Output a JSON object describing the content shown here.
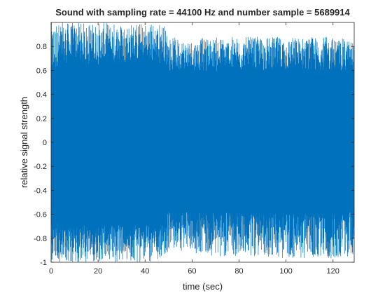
{
  "chart_data": {
    "type": "line",
    "title": "Sound with sampling rate = 44100 Hz and number sample = 5689914",
    "xlabel": "time (sec)",
    "ylabel": "relative signal strength",
    "xlim": [
      0,
      129.02
    ],
    "ylim": [
      -1,
      1
    ],
    "xticks": [
      0,
      20,
      40,
      60,
      80,
      100,
      120
    ],
    "xtick_labels": [
      "0",
      "20",
      "40",
      "60",
      "80",
      "100",
      "120"
    ],
    "yticks": [
      -1,
      -0.8,
      -0.6,
      -0.4,
      -0.2,
      0,
      0.2,
      0.4,
      0.6,
      0.8
    ],
    "ytick_labels": [
      "-1",
      "-0.8",
      "-0.6",
      "-0.4",
      "-0.2",
      "0",
      "0.2",
      "0.4",
      "0.6",
      "0.8"
    ],
    "grid": false,
    "series": [
      {
        "color": "#0072BD",
        "envelope": {
          "x": [
            0,
            2,
            5,
            10,
            20,
            30,
            40,
            48,
            50,
            60,
            70,
            80,
            90,
            100,
            110,
            120,
            129
          ],
          "upper": [
            0.56,
            0.62,
            0.65,
            0.65,
            0.65,
            0.66,
            0.66,
            0.65,
            0.6,
            0.59,
            0.59,
            0.6,
            0.6,
            0.6,
            0.6,
            0.6,
            0.59
          ],
          "lower": [
            -0.6,
            -0.66,
            -0.69,
            -0.69,
            -0.69,
            -0.69,
            -0.69,
            -0.69,
            -0.57,
            -0.58,
            -0.58,
            -0.58,
            -0.59,
            -0.59,
            -0.59,
            -0.59,
            -0.58
          ],
          "peak_upper": [
            1.0,
            1.0,
            1.0,
            1.0,
            1.0,
            1.0,
            1.0,
            1.0,
            0.88,
            0.86,
            0.88,
            0.88,
            0.88,
            0.88,
            0.88,
            0.88,
            0.85
          ],
          "peak_lower": [
            -1.0,
            -1.0,
            -1.0,
            -1.0,
            -1.0,
            -1.0,
            -1.0,
            -1.0,
            -0.9,
            -0.92,
            -0.95,
            -0.95,
            -0.95,
            -0.97,
            -0.97,
            -0.97,
            -0.95
          ]
        }
      }
    ]
  }
}
